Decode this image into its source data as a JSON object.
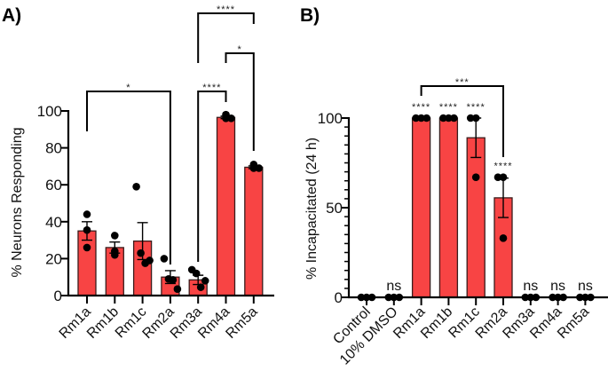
{
  "chart_data": [
    {
      "panel_label": "A)",
      "type": "bar",
      "title": "",
      "xlabel": "",
      "ylabel": "% Neurons Responding",
      "ylim": [
        0,
        100
      ],
      "yticks": [
        0,
        20,
        40,
        60,
        80,
        100
      ],
      "grid": false,
      "bar_color": "#F84444",
      "categories": [
        "Rm1a",
        "Rm1b",
        "Rm1c",
        "Rm2a",
        "Rm3a",
        "Rm4a",
        "Rm5a"
      ],
      "values": [
        35,
        26,
        29.5,
        10,
        8.5,
        96.5,
        69.5
      ],
      "error_sem": [
        5,
        3,
        10,
        3.5,
        2.5,
        0.7,
        0.7
      ],
      "points": [
        [
          44,
          35.5,
          26
        ],
        [
          32.5,
          22,
          24
        ],
        [
          59,
          23,
          17.5,
          19
        ],
        [
          20,
          9,
          8.5,
          3.5
        ],
        [
          14,
          12,
          4.5,
          8
        ],
        [
          98,
          96,
          96
        ],
        [
          71,
          69,
          69
        ]
      ],
      "annotations": [
        {
          "from": "Rm1a",
          "to": "Rm2a",
          "label": "*"
        },
        {
          "from": "Rm3a",
          "to": "Rm4a",
          "label": "****"
        },
        {
          "from": "Rm4a",
          "to": "Rm5a",
          "label": "*"
        },
        {
          "from": "Rm3a",
          "to": "Rm5a",
          "label": "****"
        }
      ]
    },
    {
      "panel_label": "B)",
      "type": "bar",
      "title": "",
      "xlabel": "",
      "ylabel": "% Incapacitated (24 h)",
      "ylim": [
        0,
        100
      ],
      "yticks": [
        0,
        50,
        100
      ],
      "minor_tick_step": 5,
      "grid": false,
      "bar_color": "#F84444",
      "categories": [
        "Control",
        "10% DMSO",
        "Rm1a",
        "Rm1b",
        "Rm1c",
        "Rm2a",
        "Rm3a",
        "Rm4a",
        "Rm5a"
      ],
      "values": [
        0,
        0,
        100,
        100,
        89,
        55.5,
        0,
        0,
        0
      ],
      "error_sem": [
        0,
        0,
        0,
        0,
        11,
        11,
        0,
        0,
        0
      ],
      "points": [
        [
          0,
          0,
          0
        ],
        [
          0,
          0,
          0
        ],
        [
          100,
          100,
          100
        ],
        [
          100,
          100,
          100
        ],
        [
          100,
          100,
          67
        ],
        [
          67,
          67,
          33
        ],
        [
          0,
          0,
          0
        ],
        [
          0,
          0,
          0
        ],
        [
          0,
          0,
          0
        ]
      ],
      "bar_labels": [
        "",
        "ns",
        "****",
        "****",
        "****",
        "****",
        "ns",
        "ns",
        "ns"
      ],
      "annotations": [
        {
          "from": "Rm1a",
          "to": "Rm2a",
          "label": "***"
        }
      ]
    }
  ]
}
